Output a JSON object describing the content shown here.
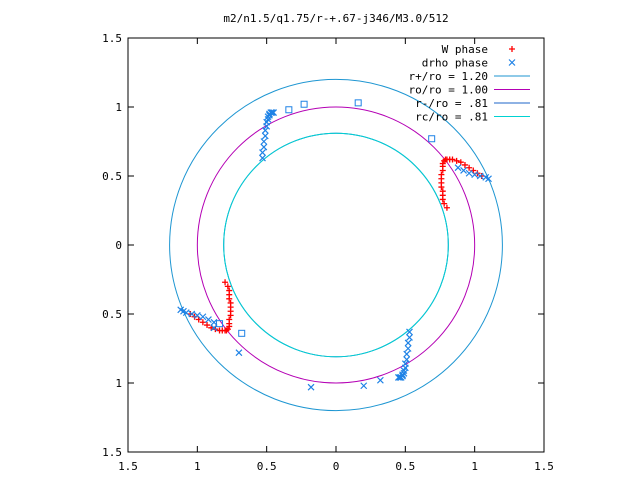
{
  "chart_data": {
    "type": "scatter",
    "title": "m2/n1.5/q1.75/r-+.67-j346/M3.0/512",
    "xlabel": "",
    "ylabel": "",
    "xlim": [
      -1.5,
      1.5
    ],
    "ylim": [
      -1.5,
      1.5
    ],
    "x_ticks": [
      -1.5,
      -1,
      -0.5,
      0,
      0.5,
      1,
      1.5
    ],
    "y_ticks": [
      -1.5,
      -1,
      -0.5,
      0,
      0.5,
      1,
      1.5
    ],
    "x_tick_labels": [
      "1.5",
      "1",
      "0.5",
      "0",
      "0.5",
      "1",
      "1.5"
    ],
    "y_tick_labels": [
      "1.5",
      "1",
      "0.5",
      "0",
      "0.5",
      "1",
      "1.5"
    ],
    "grid": false,
    "legend_position": "top-right",
    "series": [
      {
        "name": "W phase",
        "kind": "points",
        "marker": "plus",
        "color": "#ff0000",
        "x": [
          0.8,
          0.78,
          0.77,
          0.77,
          0.77,
          0.76,
          0.76,
          0.76,
          0.76,
          0.77,
          0.77,
          0.77,
          0.78,
          0.79,
          0.8,
          0.82,
          0.84,
          0.87,
          0.9,
          0.93,
          0.96,
          0.99,
          1.02,
          1.05,
          -0.8,
          -0.78,
          -0.77,
          -0.77,
          -0.77,
          -0.76,
          -0.76,
          -0.76,
          -0.76,
          -0.77,
          -0.77,
          -0.77,
          -0.78,
          -0.79,
          -0.8,
          -0.82,
          -0.84,
          -0.87,
          -0.9,
          -0.93,
          -0.96,
          -0.99,
          -1.02,
          -1.05
        ],
        "y": [
          0.27,
          0.3,
          0.33,
          0.36,
          0.39,
          0.42,
          0.45,
          0.48,
          0.51,
          0.54,
          0.57,
          0.59,
          0.61,
          0.62,
          0.62,
          0.62,
          0.62,
          0.61,
          0.6,
          0.58,
          0.56,
          0.54,
          0.52,
          0.5,
          -0.27,
          -0.3,
          -0.33,
          -0.36,
          -0.39,
          -0.42,
          -0.45,
          -0.48,
          -0.51,
          -0.54,
          -0.57,
          -0.59,
          -0.61,
          -0.62,
          -0.62,
          -0.62,
          -0.62,
          -0.61,
          -0.6,
          -0.58,
          -0.56,
          -0.54,
          -0.52,
          -0.5
        ]
      },
      {
        "name": "drho phase",
        "kind": "points",
        "marker": "cross",
        "color": "#1e82e6",
        "x": [
          -0.53,
          -0.53,
          -0.52,
          -0.52,
          -0.51,
          -0.51,
          -0.5,
          -0.5,
          -0.49,
          -0.49,
          -0.48,
          -0.48,
          -0.47,
          -0.46,
          -0.45,
          0.53,
          0.53,
          0.52,
          0.52,
          0.51,
          0.51,
          0.5,
          0.5,
          0.49,
          0.49,
          0.48,
          0.48,
          0.47,
          0.46,
          0.45,
          0.88,
          0.92,
          0.96,
          1.0,
          1.04,
          1.08,
          1.1,
          -0.88,
          -0.92,
          -0.96,
          -1.0,
          -1.04,
          -1.08,
          -1.1,
          -1.12,
          -0.18,
          0.2,
          0.32,
          -0.7,
          -0.88
        ],
        "y": [
          0.63,
          0.67,
          0.71,
          0.75,
          0.79,
          0.83,
          0.86,
          0.89,
          0.91,
          0.93,
          0.94,
          0.95,
          0.96,
          0.96,
          0.96,
          -0.63,
          -0.67,
          -0.71,
          -0.75,
          -0.79,
          -0.83,
          -0.86,
          -0.89,
          -0.91,
          -0.93,
          -0.94,
          -0.95,
          -0.96,
          -0.96,
          -0.96,
          0.56,
          0.54,
          0.52,
          0.51,
          0.5,
          0.49,
          0.48,
          -0.56,
          -0.54,
          -0.52,
          -0.51,
          -0.5,
          -0.49,
          -0.48,
          -0.47,
          -1.03,
          -1.02,
          -0.98,
          -0.78,
          -0.6
        ]
      },
      {
        "name": "",
        "kind": "points",
        "marker": "square",
        "color": "#1e82e6",
        "x": [
          -0.34,
          -0.23,
          0.16,
          0.69,
          -0.84,
          -0.68
        ],
        "y": [
          0.98,
          1.02,
          1.03,
          0.77,
          -0.57,
          -0.64
        ]
      },
      {
        "name": "r+/ro = 1.20",
        "kind": "circle",
        "radius": 1.2,
        "color": "#1e96d2"
      },
      {
        "name": "ro/ro = 1.00",
        "kind": "circle",
        "radius": 1.0,
        "color": "#b400b4"
      },
      {
        "name": "r-/ro = .81",
        "kind": "circle",
        "radius": 0.81,
        "color": "#1e64c8"
      },
      {
        "name": "rc/ro = .81",
        "kind": "circle",
        "radius": 0.81,
        "color": "#00d2d2"
      }
    ]
  }
}
